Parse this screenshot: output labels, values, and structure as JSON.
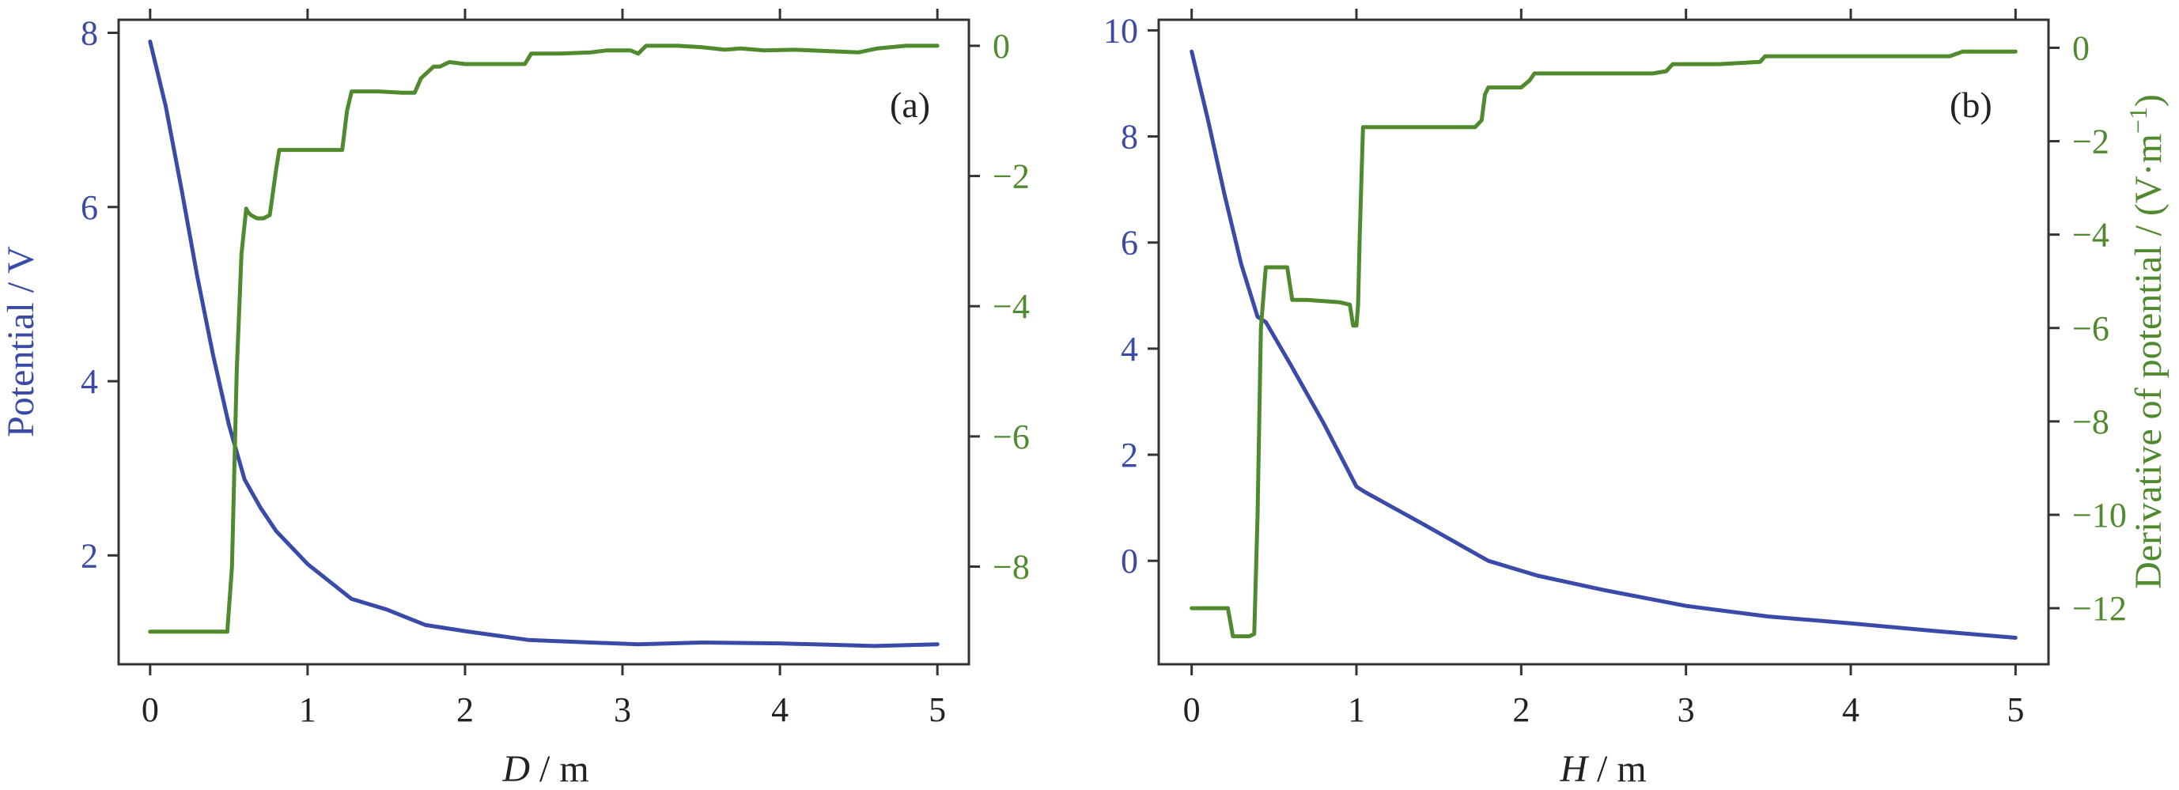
{
  "colors": {
    "left_axis": "#3a4aa8",
    "right_axis": "#4f8a2e",
    "frame": "#333333",
    "text": "#222222"
  },
  "chart_data": [
    {
      "type": "line",
      "panel_label": "(a)",
      "xlabel_var": "D",
      "xlabel_unit": " / m",
      "ylabel_left": "Potential / V",
      "ylabel_right": "",
      "xlim": [
        -0.2,
        5.2
      ],
      "ylim_left": [
        0.75,
        8.15
      ],
      "ylim_right": [
        -9.5,
        0.4
      ],
      "xticks": [
        0,
        1,
        2,
        3,
        4,
        5
      ],
      "yticks_left": [
        2,
        4,
        6,
        8
      ],
      "yticks_right": [
        -8,
        -6,
        -4,
        -2,
        0
      ],
      "xtick_labels": [
        "0",
        "1",
        "2",
        "3",
        "4",
        "5"
      ],
      "ytick_labels_left": [
        "2",
        "4",
        "6",
        "8"
      ],
      "ytick_labels_right": [
        "−8",
        "−6",
        "−4",
        "−2",
        "0"
      ],
      "series": [
        {
          "axis": "left",
          "color": "#3a4aa8",
          "x": [
            0,
            0.1,
            0.2,
            0.3,
            0.4,
            0.5,
            0.6,
            0.7,
            0.8,
            1.0,
            1.28,
            1.5,
            1.75,
            2.0,
            2.4,
            2.8,
            3.1,
            3.5,
            4.0,
            4.6,
            5.0
          ],
          "y": [
            7.9,
            7.15,
            6.2,
            5.2,
            4.3,
            3.5,
            2.87,
            2.55,
            2.28,
            1.9,
            1.5,
            1.38,
            1.2,
            1.13,
            1.03,
            1.0,
            0.98,
            1.0,
            0.99,
            0.96,
            0.98
          ]
        },
        {
          "axis": "right",
          "color": "#4f8a2e",
          "x": [
            0,
            0.49,
            0.52,
            0.55,
            0.58,
            0.61,
            0.62,
            0.64,
            0.68,
            0.72,
            0.76,
            0.8,
            0.82,
            0.86,
            0.9,
            1.0,
            1.15,
            1.22,
            1.25,
            1.28,
            1.33,
            1.45,
            1.6,
            1.68,
            1.72,
            1.8,
            1.84,
            1.9,
            2.0,
            2.15,
            2.38,
            2.42,
            2.6,
            2.8,
            2.9,
            3.05,
            3.1,
            3.15,
            3.35,
            3.5,
            3.65,
            3.75,
            3.9,
            4.1,
            4.5,
            4.62,
            4.8,
            5.0
          ],
          "y": [
            -9.0,
            -9.0,
            -8.0,
            -5.0,
            -3.2,
            -2.5,
            -2.55,
            -2.6,
            -2.65,
            -2.65,
            -2.6,
            -1.9,
            -1.6,
            -1.6,
            -1.6,
            -1.6,
            -1.6,
            -1.6,
            -1.0,
            -0.7,
            -0.7,
            -0.7,
            -0.72,
            -0.72,
            -0.5,
            -0.32,
            -0.32,
            -0.25,
            -0.28,
            -0.28,
            -0.28,
            -0.12,
            -0.12,
            -0.1,
            -0.07,
            -0.07,
            -0.12,
            0.0,
            0.0,
            -0.02,
            -0.06,
            -0.04,
            -0.07,
            -0.06,
            -0.1,
            -0.04,
            0.0,
            0.0
          ]
        }
      ]
    },
    {
      "type": "line",
      "panel_label": "(b)",
      "xlabel_var": "H",
      "xlabel_unit": " / m",
      "ylabel_left": "",
      "ylabel_right_main": "Derivative of potential / (V·m",
      "ylabel_right_sup": "−1",
      "ylabel_right_end": ")",
      "xlim": [
        -0.2,
        5.2
      ],
      "ylim_left": [
        -1.95,
        10.2
      ],
      "ylim_right": [
        -13.2,
        0.6
      ],
      "xticks": [
        0,
        1,
        2,
        3,
        4,
        5
      ],
      "yticks_left": [
        0,
        2,
        4,
        6,
        8,
        10
      ],
      "yticks_right": [
        -12,
        -10,
        -8,
        -6,
        -4,
        -2,
        0
      ],
      "xtick_labels": [
        "0",
        "1",
        "2",
        "3",
        "4",
        "5"
      ],
      "ytick_labels_left": [
        "0",
        "2",
        "4",
        "6",
        "8",
        "10"
      ],
      "ytick_labels_right": [
        "−12",
        "−10",
        "−8",
        "−6",
        "−4",
        "−2",
        "0"
      ],
      "series": [
        {
          "axis": "left",
          "color": "#3a4aa8",
          "x": [
            0,
            0.1,
            0.2,
            0.3,
            0.4,
            0.45,
            0.6,
            0.8,
            1.0,
            1.05,
            1.4,
            1.8,
            2.1,
            2.5,
            3.0,
            3.5,
            4.0,
            4.5,
            5.0
          ],
          "y": [
            9.6,
            8.3,
            6.9,
            5.6,
            4.6,
            4.5,
            3.7,
            2.6,
            1.4,
            1.3,
            0.7,
            0.0,
            -0.28,
            -0.55,
            -0.85,
            -1.05,
            -1.18,
            -1.32,
            -1.45
          ]
        },
        {
          "axis": "right",
          "color": "#4f8a2e",
          "x": [
            0,
            0.22,
            0.25,
            0.28,
            0.35,
            0.38,
            0.4,
            0.42,
            0.45,
            0.48,
            0.55,
            0.58,
            0.61,
            0.7,
            0.9,
            0.96,
            0.98,
            1.0,
            1.01,
            1.02,
            1.04,
            1.3,
            1.5,
            1.72,
            1.76,
            1.78,
            1.8,
            1.85,
            2.0,
            2.05,
            2.08,
            2.5,
            2.8,
            2.88,
            2.92,
            3.2,
            3.45,
            3.48,
            3.8,
            4.2,
            4.6,
            4.68,
            4.8,
            5.0
          ],
          "y": [
            -12.0,
            -12.0,
            -12.6,
            -12.6,
            -12.6,
            -12.55,
            -10.0,
            -6.0,
            -4.7,
            -4.7,
            -4.7,
            -4.7,
            -5.4,
            -5.4,
            -5.45,
            -5.5,
            -5.95,
            -5.95,
            -5.5,
            -4.0,
            -1.7,
            -1.7,
            -1.7,
            -1.7,
            -1.55,
            -1.0,
            -0.85,
            -0.85,
            -0.85,
            -0.7,
            -0.55,
            -0.55,
            -0.55,
            -0.5,
            -0.35,
            -0.35,
            -0.3,
            -0.18,
            -0.18,
            -0.18,
            -0.18,
            -0.08,
            -0.08,
            -0.08
          ]
        }
      ]
    }
  ]
}
